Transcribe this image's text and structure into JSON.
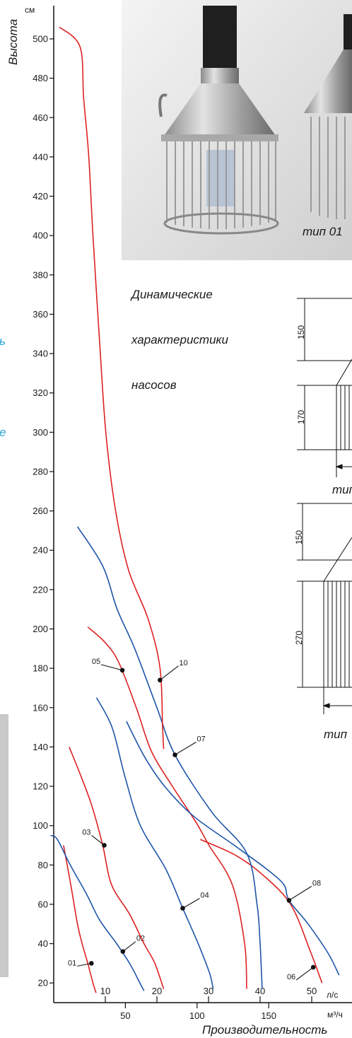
{
  "photo": {
    "caption": "тип 01"
  },
  "heading": {
    "line1": "Динамические",
    "line2": "характеристики",
    "line3": "насосов"
  },
  "drawing_top": {
    "dim_a": "150",
    "dim_b": "170",
    "caption": "тип"
  },
  "drawing_bottom": {
    "dim_a": "150",
    "dim_b": "270",
    "caption": "тип"
  },
  "cut_text": {
    "a": "ь",
    "b": "е"
  },
  "colors": {
    "red": "#dd2222",
    "blue": "#1f55a8",
    "axis": "#111111",
    "cyan_text": "#29a3d8"
  },
  "chart_data": {
    "type": "line",
    "ylabel": "Высота",
    "yunit": "см",
    "xlabel": "Производительность",
    "x_unit_primary": "л/с",
    "x_unit_secondary": "м³/ч",
    "ylim": [
      10,
      510
    ],
    "xlim": [
      0,
      55
    ],
    "yticks": [
      20,
      40,
      60,
      80,
      100,
      120,
      140,
      160,
      180,
      200,
      220,
      240,
      260,
      280,
      300,
      320,
      340,
      360,
      380,
      400,
      420,
      440,
      460,
      480,
      500
    ],
    "xticks_primary": [
      10,
      20,
      30,
      40,
      50
    ],
    "xticks_secondary": [
      50,
      100,
      150
    ],
    "grid": false,
    "series": [
      {
        "name": "01",
        "color": "red",
        "label_point": [
          7.3,
          30
        ],
        "points": [
          [
            1.9,
            90
          ],
          [
            3.3,
            70
          ],
          [
            4.6,
            50
          ],
          [
            5.5,
            40
          ],
          [
            6.6,
            30
          ],
          [
            7.6,
            20
          ],
          [
            8.2,
            15
          ]
        ]
      },
      {
        "name": "02",
        "color": "blue",
        "label_point": [
          13.4,
          36
        ],
        "points": [
          [
            -0.6,
            95
          ],
          [
            0.7,
            93
          ],
          [
            3.2,
            80
          ],
          [
            6.4,
            65
          ],
          [
            8.9,
            52
          ],
          [
            12.2,
            40
          ],
          [
            14.7,
            30
          ],
          [
            16.7,
            20
          ],
          [
            17.5,
            16
          ]
        ]
      },
      {
        "name": "03",
        "color": "red",
        "label_point": [
          9.8,
          90
        ],
        "points": [
          [
            3.0,
            140
          ],
          [
            5.3,
            125
          ],
          [
            7.4,
            110
          ],
          [
            9.5,
            90
          ],
          [
            11.2,
            70
          ],
          [
            14.7,
            55
          ],
          [
            17.5,
            40
          ],
          [
            19.6,
            30
          ],
          [
            21.3,
            17
          ]
        ]
      },
      {
        "name": "04",
        "color": "blue",
        "label_point": [
          25.0,
          58
        ],
        "points": [
          [
            8.3,
            165
          ],
          [
            11.3,
            150
          ],
          [
            13.8,
            125
          ],
          [
            16.8,
            100
          ],
          [
            21.7,
            78
          ],
          [
            25.0,
            58
          ],
          [
            28.0,
            40
          ],
          [
            30.2,
            25
          ],
          [
            30.9,
            17
          ]
        ]
      },
      {
        "name": "05",
        "color": "red",
        "label_point": [
          13.3,
          179
        ],
        "points": [
          [
            6.6,
            201
          ],
          [
            10.0,
            193
          ],
          [
            12.6,
            183
          ],
          [
            16.0,
            160
          ],
          [
            18.9,
            138
          ],
          [
            23.0,
            120
          ],
          [
            27.5,
            102
          ],
          [
            30.1,
            90
          ],
          [
            34.6,
            70
          ],
          [
            37.0,
            40
          ],
          [
            37.4,
            17
          ]
        ]
      },
      {
        "name": "06",
        "color": "red",
        "label_point": [
          50.3,
          28
        ],
        "points": [
          [
            28.4,
            93
          ],
          [
            35.2,
            85
          ],
          [
            40.5,
            75
          ],
          [
            45.9,
            60
          ],
          [
            49.6,
            37
          ],
          [
            52.0,
            20
          ]
        ]
      },
      {
        "name": "07",
        "color": "blue",
        "label_point": [
          23.5,
          136
        ],
        "points": [
          [
            4.6,
            252
          ],
          [
            9.5,
            232
          ],
          [
            12.3,
            210
          ],
          [
            15.7,
            190
          ],
          [
            20.0,
            160
          ],
          [
            23.5,
            136
          ],
          [
            30.6,
            107
          ],
          [
            37.4,
            86
          ],
          [
            39.4,
            60
          ],
          [
            40.0,
            40
          ],
          [
            40.4,
            17
          ]
        ]
      },
      {
        "name": "08",
        "color": "blue",
        "label_point": [
          45.6,
          62
        ],
        "points": [
          [
            14.1,
            153
          ],
          [
            17.6,
            135
          ],
          [
            21.5,
            120
          ],
          [
            27.0,
            105
          ],
          [
            35.0,
            90
          ],
          [
            41.2,
            78
          ],
          [
            44.6,
            70
          ],
          [
            45.6,
            62
          ],
          [
            49.3,
            50
          ],
          [
            53.2,
            35
          ],
          [
            55.3,
            24
          ]
        ]
      },
      {
        "name": "10",
        "color": "red",
        "label_point": [
          20.6,
          174
        ],
        "points": [
          [
            1.1,
            506
          ],
          [
            5.1,
            496
          ],
          [
            5.8,
            470
          ],
          [
            6.8,
            440
          ],
          [
            7.6,
            400
          ],
          [
            8.8,
            350
          ],
          [
            10.1,
            300
          ],
          [
            12.0,
            260
          ],
          [
            14.5,
            230
          ],
          [
            18.3,
            205
          ],
          [
            20.6,
            180
          ],
          [
            21.1,
            150
          ],
          [
            21.3,
            139
          ]
        ]
      }
    ]
  }
}
